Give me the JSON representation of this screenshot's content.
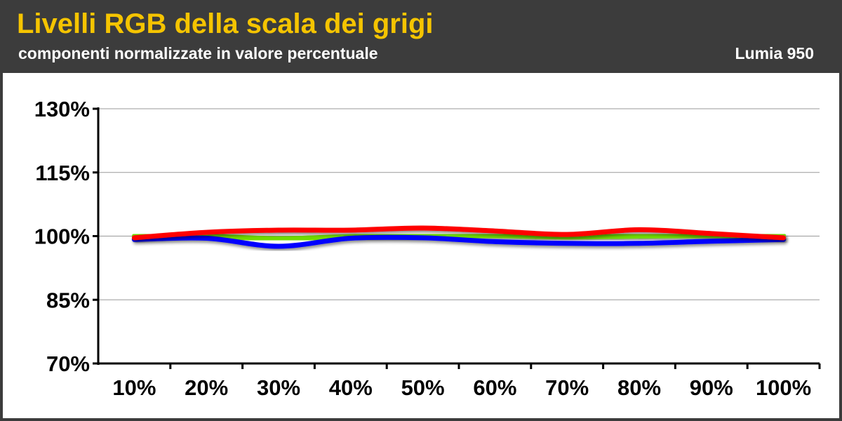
{
  "header": {
    "title": "Livelli RGB della scala dei grigi",
    "subtitle": "componenti normalizzate in valore percentuale",
    "device": "Lumia 950"
  },
  "chart_data": {
    "type": "line",
    "title": "Livelli RGB della scala dei grigi",
    "subtitle": "componenti normalizzate in valore percentuale",
    "xlabel": "",
    "ylabel": "",
    "categories": [
      "10%",
      "20%",
      "30%",
      "40%",
      "50%",
      "60%",
      "70%",
      "80%",
      "90%",
      "100%"
    ],
    "ylim": [
      70,
      130
    ],
    "yticks": [
      70,
      85,
      100,
      115,
      130
    ],
    "yticklabels": [
      "70%",
      "85%",
      "100%",
      "115%",
      "130%"
    ],
    "grid": true,
    "series": [
      {
        "color": "#70dc00",
        "values": [
          100.0,
          100.0,
          99.4,
          99.9,
          100.0,
          100.1,
          99.8,
          100.0,
          100.1,
          100.1
        ]
      },
      {
        "color": "#0000ff",
        "values": [
          99.2,
          99.5,
          97.6,
          99.5,
          99.6,
          98.7,
          98.3,
          98.3,
          98.8,
          99.2
        ]
      },
      {
        "color": "#ff0000",
        "values": [
          99.6,
          100.9,
          101.4,
          101.4,
          101.9,
          101.2,
          100.4,
          101.5,
          100.6,
          99.6
        ]
      }
    ]
  }
}
